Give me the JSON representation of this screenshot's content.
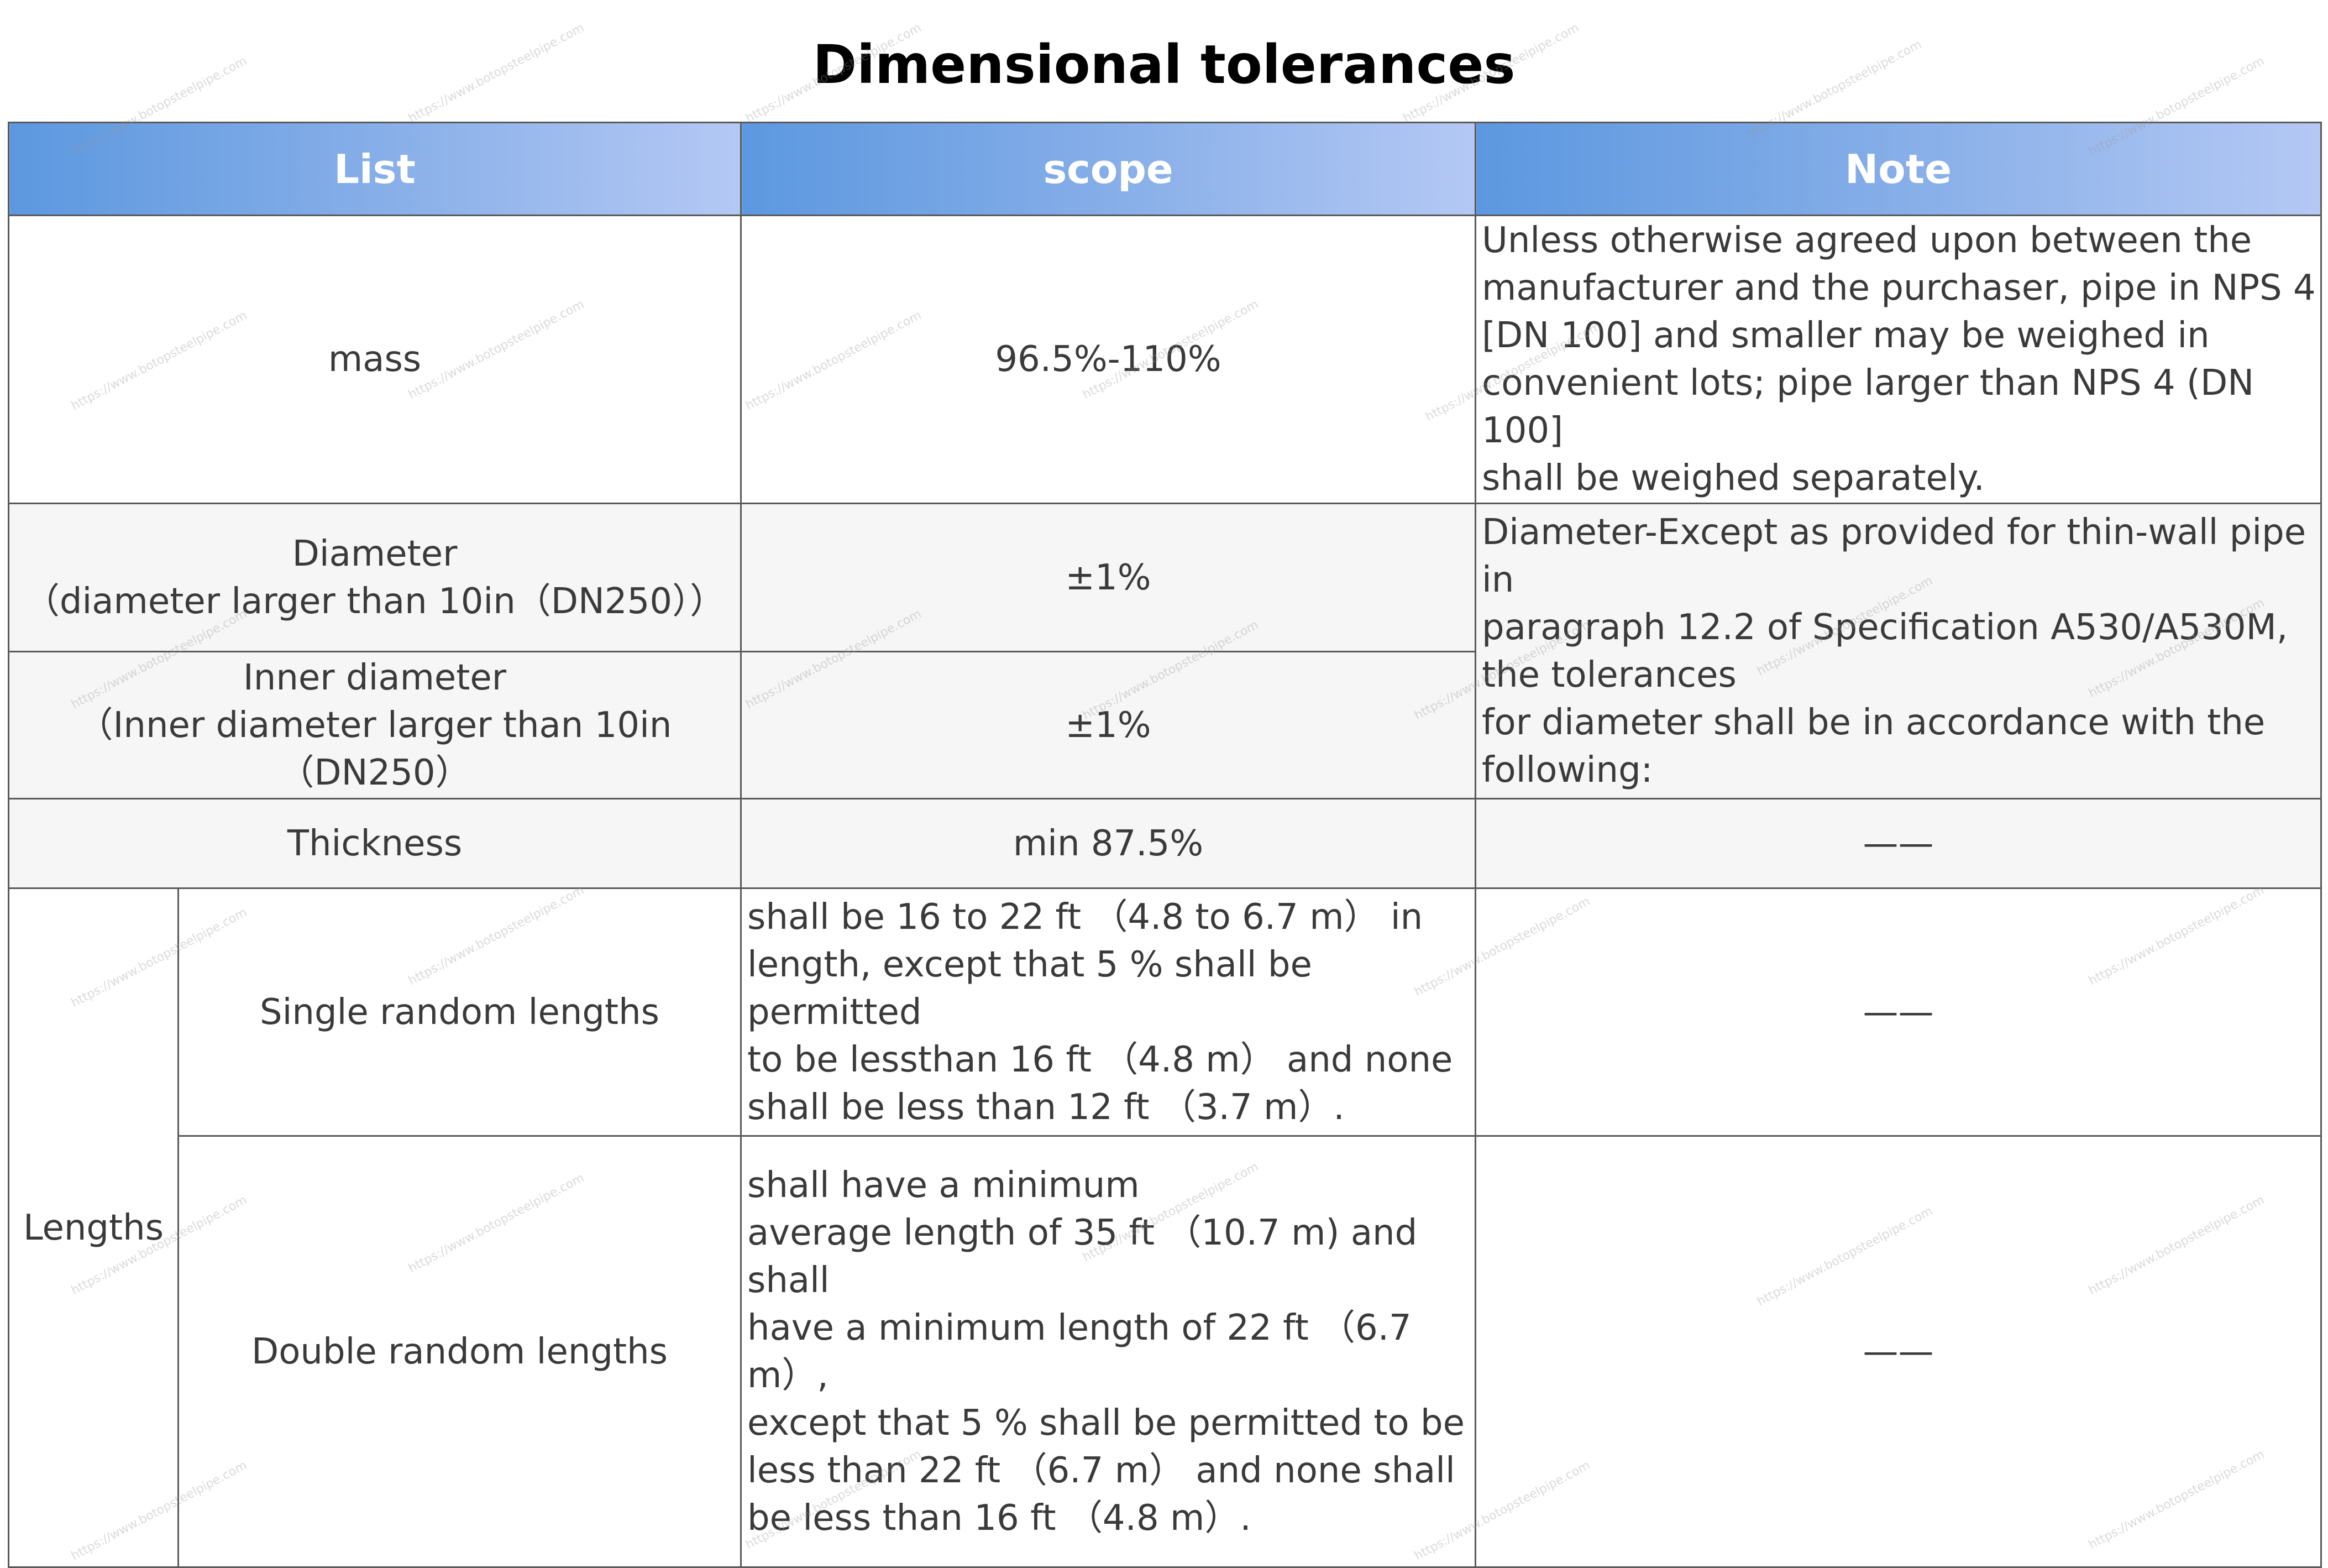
{
  "title": "Dimensional tolerances",
  "header": {
    "col1": "List",
    "col2": "scope",
    "col3": "Note"
  },
  "rows": {
    "mass": {
      "list": "mass",
      "scope": "96.5%-110%",
      "note": [
        "Unless otherwise agreed upon between the",
        "manufacturer and the purchaser, pipe in NPS 4",
        "[DN 100] and smaller may be weighed in",
        "convenient lots; pipe larger than NPS 4 (DN 100]",
        "shall be weighed separately."
      ]
    },
    "diameter": {
      "list": [
        "Diameter",
        "（diameter larger than 10in（DN250））"
      ],
      "scope": "±1%"
    },
    "inner_diameter": {
      "list": [
        "Inner diameter",
        "（Inner diameter larger than 10in",
        "（DN250）"
      ],
      "scope": "±1%"
    },
    "diameter_note": [
      "Diameter-Except as provided for thin-wall pipe",
      "in",
      "paragraph 12.2 of Specification A530/A530M,",
      "the tolerances",
      "for diameter shall be in accordance with the",
      "following:"
    ],
    "thickness": {
      "list": "Thickness",
      "scope": "min 87.5%",
      "note": "——"
    },
    "lengths": {
      "group": "Lengths",
      "single": {
        "list": "Single random lengths",
        "scope": [
          " shall be 16 to 22 ft （4.8 to 6.7 m） in",
          "length, except that 5 % shall be permitted",
          "to be lessthan 16 ft （4.8 m） and none",
          "shall be less than 12 ft （3.7 m）."
        ],
        "note": "——"
      },
      "double": {
        "list": "Double random lengths",
        "scope": [
          "shall have a minimum",
          "average length of 35 ft （10.7 m) and shall",
          "have a minimum length of 22 ft （6.7 m）,",
          "except that 5 % shall be permitted to be",
          "less than 22 ft （6.7 m） and none shall",
          "be less than 16 ft （4.8 m）."
        ],
        "note": "——"
      }
    }
  },
  "watermark_text": "https://www.botopsteelpipe.com"
}
